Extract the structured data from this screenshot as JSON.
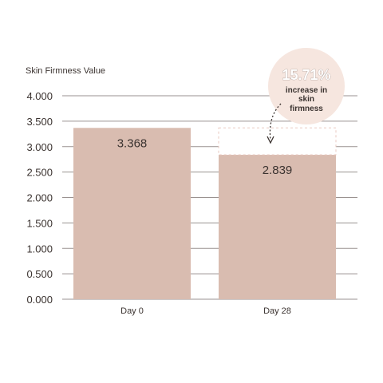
{
  "chart_data": {
    "type": "bar",
    "ylabel": "Skin Firmness Value",
    "xlabel": "",
    "ylim": [
      0,
      4
    ],
    "yticks": [
      "0.000",
      "0.500",
      "1.000",
      "1.500",
      "2.000",
      "2.500",
      "3.000",
      "3.500",
      "4.000"
    ],
    "categories": [
      "Day 0",
      "Day 28"
    ],
    "values": [
      3.368,
      2.839
    ],
    "value_labels": [
      "3.368",
      "2.839"
    ],
    "annotation": {
      "percent": "15.71%",
      "line1": "increase in",
      "line2": "skin",
      "line3": "firmness"
    },
    "colors": {
      "bar": "#d9bcb0",
      "grid": "#9a9290",
      "bubble": "#f6e6df",
      "outline": "#e9c9c0",
      "arrow": "#3b3330"
    }
  }
}
